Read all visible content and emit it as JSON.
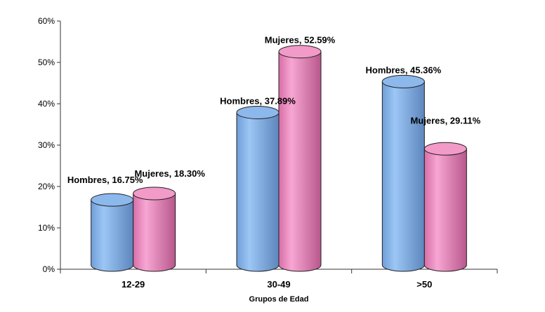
{
  "chart_data": {
    "type": "bar",
    "title": "",
    "xlabel": "Grupos de Edad",
    "ylabel": "",
    "ylim": [
      0,
      60
    ],
    "yticks": [
      "0%",
      "10%",
      "20%",
      "30%",
      "40%",
      "50%",
      "60%"
    ],
    "categories": [
      "12-29",
      "30-49",
      ">50"
    ],
    "series": [
      {
        "name": "Hombres",
        "values": [
          16.75,
          37.89,
          45.36
        ],
        "labels": [
          "Hombres, 16.75%",
          "Hombres, 37.89%",
          "Hombres, 45.36%"
        ],
        "color": "#7fb0ea"
      },
      {
        "name": "Mujeres",
        "values": [
          18.3,
          52.59,
          29.11
        ],
        "labels": [
          "Mujeres, 18.30%",
          "Mujeres, 52.59%",
          "Mujeres, 29.11%"
        ],
        "color": "#ee8cc0"
      }
    ],
    "grid": false,
    "legend": "none",
    "style": "3d-cylinder"
  }
}
